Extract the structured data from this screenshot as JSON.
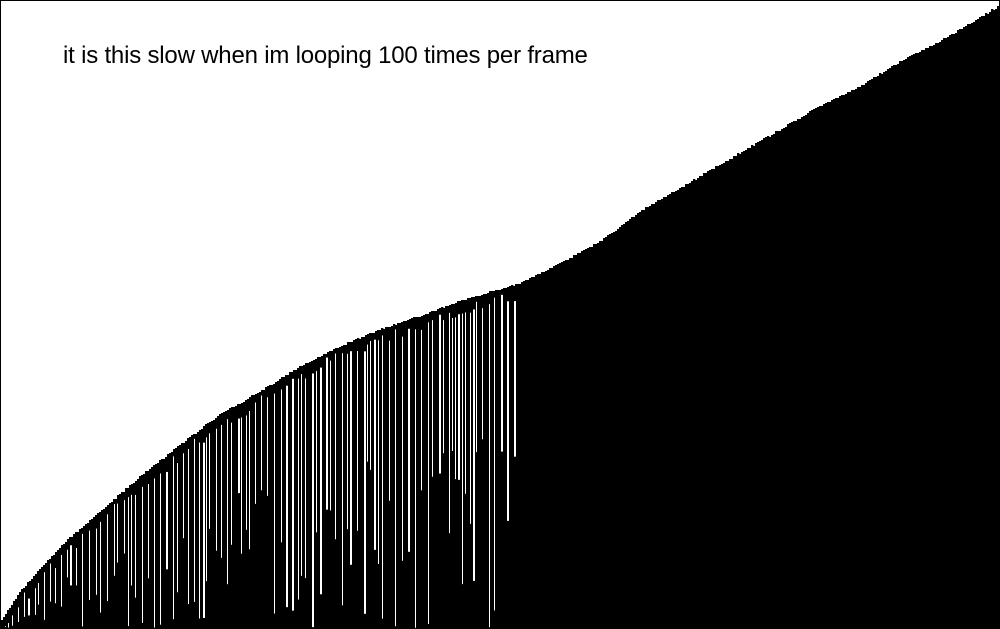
{
  "caption": "it is this slow when im looping 100 times per frame",
  "colors": {
    "background": "#ffffff",
    "bars": "#000000",
    "border": "#000000",
    "text": "#000000"
  },
  "visualization": {
    "kind": "sorting-bars",
    "sorted_fraction": 0.48
  }
}
